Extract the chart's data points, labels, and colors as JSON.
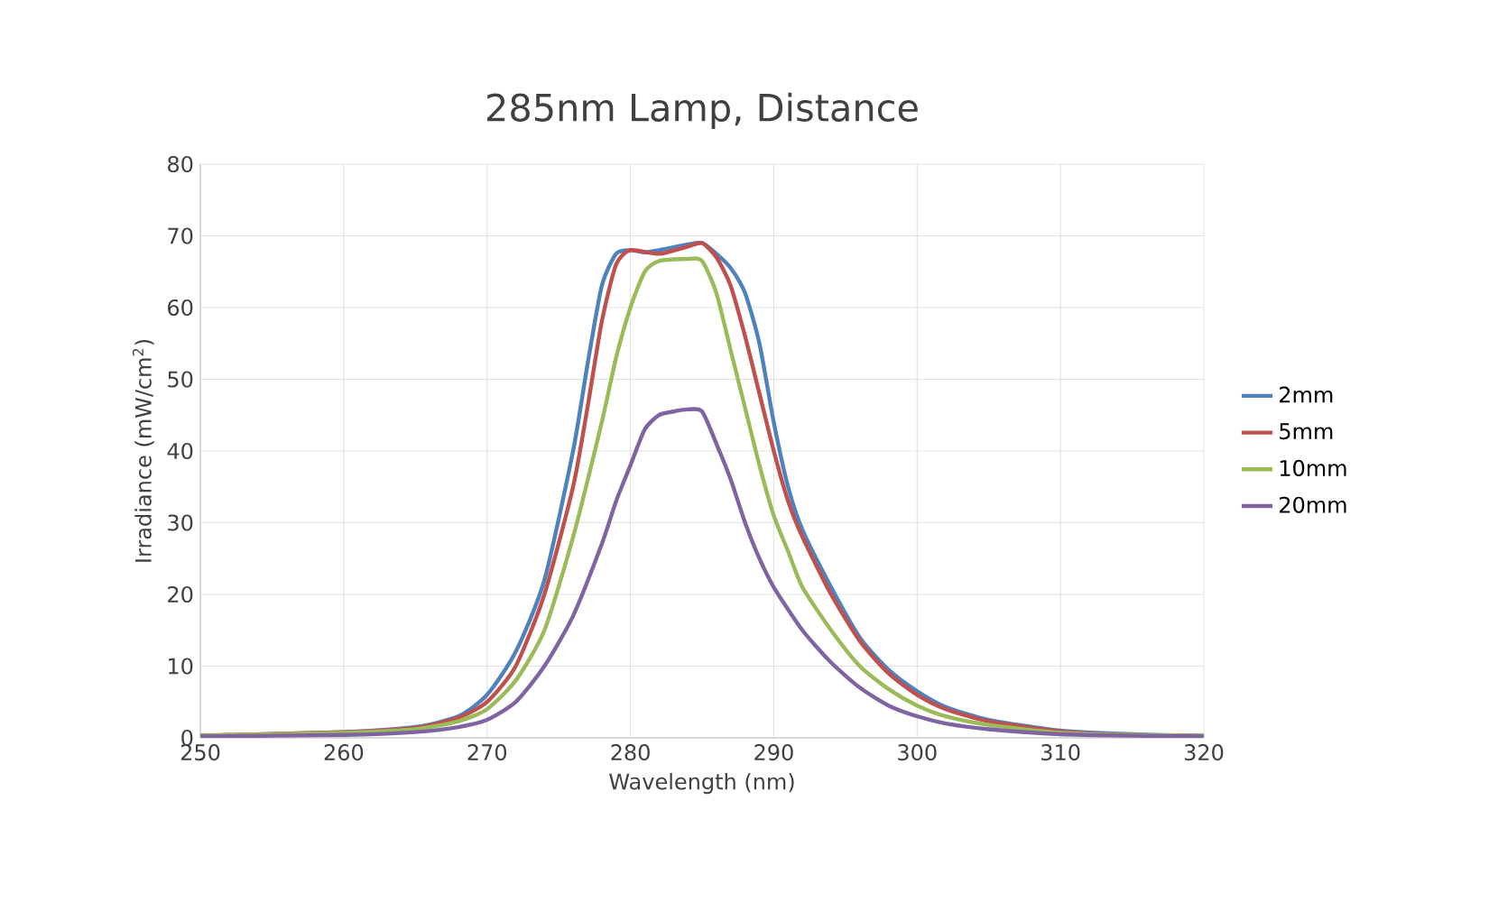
{
  "chart_data": {
    "type": "line",
    "title": "285nm Lamp, Distance",
    "xlabel": "Wavelength (nm)",
    "ylabel": "Irradiance (mW/cm$^{2}$)",
    "xlim": [
      250,
      320
    ],
    "xticks": [
      250,
      260,
      270,
      280,
      290,
      300,
      310,
      320
    ],
    "ylim": [
      0,
      80
    ],
    "yticks": [
      0,
      10,
      20,
      30,
      40,
      50,
      60,
      70,
      80
    ],
    "grid": true,
    "legend": "right",
    "marker": "none",
    "line_style": "solid",
    "series": [
      {
        "name": "2mm",
        "color": "#4f81bd",
        "x": [
          250,
          260,
          265,
          268,
          270,
          272,
          274,
          276,
          277,
          278,
          279,
          280,
          281,
          282,
          284,
          285,
          286,
          287,
          288,
          289,
          290,
          291,
          292,
          294,
          296,
          298,
          300,
          302,
          305,
          310,
          315,
          320
        ],
        "values": [
          0.3,
          0.8,
          1.5,
          3,
          6,
          12,
          22,
          40,
          52,
          63,
          67.5,
          68,
          67.7,
          68,
          68.8,
          69,
          67.5,
          65.5,
          62,
          55,
          44,
          35,
          29,
          21,
          14,
          9.5,
          6.5,
          4.3,
          2.5,
          1,
          0.5,
          0.3
        ]
      },
      {
        "name": "5mm",
        "color": "#c0504d",
        "x": [
          250,
          260,
          265,
          268,
          270,
          272,
          274,
          276,
          277,
          278,
          279,
          280,
          282,
          284,
          285,
          286,
          287,
          288,
          289,
          290,
          291,
          292,
          294,
          296,
          298,
          300,
          302,
          305,
          310,
          315,
          320
        ],
        "values": [
          0.3,
          0.8,
          1.4,
          2.8,
          5,
          10,
          20,
          35,
          46,
          58,
          66,
          68,
          67.5,
          68.5,
          69,
          67,
          63,
          56,
          48,
          40,
          33,
          28,
          20,
          13.5,
          9,
          6,
          4,
          2.3,
          0.9,
          0.4,
          0.3
        ]
      },
      {
        "name": "10mm",
        "color": "#9bbb59",
        "x": [
          250,
          260,
          265,
          268,
          270,
          272,
          274,
          276,
          278,
          279,
          280,
          281,
          282,
          284,
          285,
          286,
          287,
          288,
          289,
          290,
          291,
          292,
          294,
          296,
          298,
          300,
          302,
          305,
          310,
          315,
          320
        ],
        "values": [
          0.3,
          0.7,
          1.2,
          2.3,
          4,
          8,
          15,
          28,
          44,
          53,
          60,
          65,
          66.5,
          66.8,
          66.5,
          62,
          54,
          46,
          38,
          31,
          26,
          21,
          15,
          10,
          6.8,
          4.5,
          3,
          1.8,
          0.7,
          0.4,
          0.3
        ]
      },
      {
        "name": "20mm",
        "color": "#8064a2",
        "x": [
          250,
          260,
          265,
          268,
          270,
          272,
          274,
          276,
          278,
          279,
          280,
          281,
          282,
          283,
          284,
          285,
          286,
          287,
          288,
          289,
          290,
          292,
          294,
          296,
          298,
          300,
          302,
          305,
          310,
          315,
          320
        ],
        "values": [
          0.2,
          0.4,
          0.8,
          1.5,
          2.5,
          5,
          10,
          17,
          27,
          33,
          38,
          43,
          45,
          45.5,
          45.8,
          45.5,
          41,
          36,
          30,
          25,
          21,
          15,
          10.5,
          7,
          4.5,
          3,
          2,
          1.2,
          0.5,
          0.3,
          0.2
        ]
      }
    ]
  }
}
